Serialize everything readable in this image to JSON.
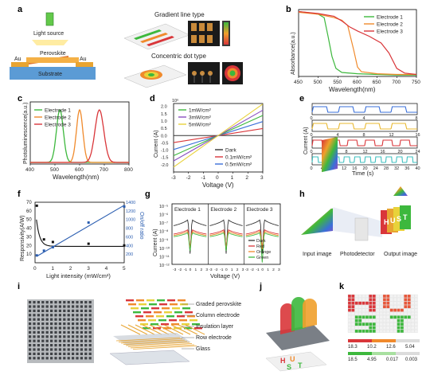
{
  "panel_labels": [
    "a",
    "b",
    "c",
    "d",
    "e",
    "f",
    "g",
    "h",
    "i",
    "j",
    "k"
  ],
  "panel_a": {
    "light_source": "Light source",
    "perovskite": "Perovskite",
    "au_left": "Au",
    "au_right": "Au",
    "substrate": "Substrate",
    "gradient_title": "Gradient line type",
    "concentric_title": "Concentric dot type"
  },
  "panel_h": {
    "input_image": "Input image",
    "photodetector": "Photodetector",
    "output_image": "Output image",
    "letters": [
      "H",
      "U",
      "S",
      "T"
    ]
  },
  "panel_i": {
    "layers": [
      "Graded perovskite",
      "Column electrode",
      "Insulation layer",
      "Row electrode",
      "Glass"
    ]
  },
  "panel_j": {
    "letters": [
      "H",
      "U",
      "S",
      "T"
    ]
  },
  "panel_k": {
    "letters": [
      "H",
      "U",
      "S",
      "T"
    ],
    "legend_top": [
      "18.3",
      "10.2",
      "12.6",
      "5.04"
    ],
    "legend_bottom": [
      "18.5",
      "4.95",
      "0.017",
      "0.003"
    ]
  },
  "chart_data": [
    {
      "id": "b",
      "type": "line",
      "xlabel": "Wavelength(nm)",
      "ylabel": "Absorbance(a.u.)",
      "xlim": [
        450,
        750
      ],
      "xticks": [
        450,
        500,
        550,
        600,
        650,
        700,
        750
      ],
      "series": [
        {
          "name": "Electrode 1",
          "color": "#3db83d",
          "x": [
            450,
            480,
            500,
            515,
            525,
            535,
            545,
            560,
            600,
            650,
            700,
            750
          ],
          "y": [
            0.97,
            0.95,
            0.93,
            0.88,
            0.6,
            0.3,
            0.12,
            0.06,
            0.04,
            0.03,
            0.02,
            0.02
          ]
        },
        {
          "name": "Electrode 2",
          "color": "#f08a2c",
          "x": [
            450,
            500,
            540,
            560,
            575,
            590,
            600,
            610,
            650,
            700,
            750
          ],
          "y": [
            0.96,
            0.93,
            0.88,
            0.84,
            0.76,
            0.4,
            0.14,
            0.07,
            0.04,
            0.03,
            0.03
          ]
        },
        {
          "name": "Electrode 3",
          "color": "#d9363a",
          "x": [
            450,
            500,
            540,
            560,
            580,
            600,
            630,
            660,
            680,
            700,
            720,
            750
          ],
          "y": [
            0.97,
            0.94,
            0.9,
            0.83,
            0.74,
            0.68,
            0.6,
            0.5,
            0.35,
            0.12,
            0.05,
            0.03
          ]
        }
      ]
    },
    {
      "id": "c",
      "type": "line",
      "xlabel": "Wavelength(nm)",
      "ylabel": "Photoluminescence(a.u.)",
      "xlim": [
        400,
        800
      ],
      "xticks": [
        400,
        500,
        600,
        700,
        800
      ],
      "series": [
        {
          "name": "Electrode 1",
          "color": "#3db83d",
          "peak": 520,
          "width": 14
        },
        {
          "name": "Electrode 2",
          "color": "#f08a2c",
          "peak": 600,
          "width": 13
        },
        {
          "name": "Electrode 3",
          "color": "#d9363a",
          "peak": 680,
          "width": 18
        }
      ]
    },
    {
      "id": "d",
      "type": "line",
      "xlabel": "Voltage (V)",
      "ylabel": "Current (A)",
      "yexp": "10⁶",
      "xlim": [
        -3,
        3
      ],
      "ylim": [
        -2.5,
        2.2
      ],
      "xticks": [
        -3,
        -2,
        -1,
        0,
        1,
        2,
        3
      ],
      "yticks": [
        2.0,
        1.5,
        1.0,
        0.5,
        0.0,
        -0.5,
        -1.0,
        -1.5,
        -2.0
      ],
      "legend_top": [
        "1mW/cm²",
        "3mW/cm²",
        "5mW/cm²"
      ],
      "legend_bottom": [
        "Dark",
        "0.1mW/cm²",
        "0.5mW/cm²"
      ],
      "series": [
        {
          "name": "Dark",
          "color": "#333333",
          "slope": 0.0
        },
        {
          "name": "0.1mW/cm²",
          "color": "#d9363a",
          "slope": 0.16
        },
        {
          "name": "0.5mW/cm²",
          "color": "#3a6fd9",
          "slope": 0.32
        },
        {
          "name": "1mW/cm²",
          "color": "#3db83d",
          "slope": 0.46
        },
        {
          "name": "3mW/cm²",
          "color": "#8a4fc0",
          "slope": 0.58
        },
        {
          "name": "5mW/cm²",
          "color": "#e8d23a",
          "slope": 0.72
        }
      ]
    },
    {
      "id": "e",
      "type": "line",
      "xlabel": "Time (s)",
      "ylabel": "Current (A)",
      "rows": [
        {
          "color": "#3a6fd9",
          "ticks": [
            "0",
            "4",
            "8"
          ],
          "tmax": 8,
          "period": 2
        },
        {
          "color": "#e8b830",
          "ticks": [
            "0",
            "4",
            "8",
            "12",
            "16"
          ],
          "tmax": 16,
          "period": 4
        },
        {
          "color": "#d9363a",
          "ticks": [
            "0",
            "4",
            "8",
            "12",
            "16",
            "20",
            "24"
          ],
          "tmax": 24,
          "period": 4
        },
        {
          "color": "#3fc0c0",
          "ticks": [
            "0",
            "4",
            "8",
            "12",
            "16",
            "20",
            "24",
            "28",
            "32",
            "36",
            "40"
          ],
          "tmax": 40,
          "period": 4
        }
      ]
    },
    {
      "id": "f",
      "type": "scatter",
      "xlabel": "Light intensity (mW/cm²)",
      "ylabel": "Responsivity(A/W)",
      "y2label": "On/off ratio",
      "xlim": [
        0,
        5
      ],
      "ylim": [
        0,
        70
      ],
      "y2lim": [
        0,
        1400
      ],
      "xticks": [
        0,
        1,
        2,
        3,
        4,
        5
      ],
      "yticks": [
        10,
        20,
        30,
        40,
        50,
        60,
        70
      ],
      "y2ticks": [
        200,
        400,
        600,
        800,
        1000,
        1200,
        1400
      ],
      "responsivity": {
        "x": [
          0.1,
          0.5,
          1,
          3,
          5
        ],
        "y": [
          66,
          27,
          24,
          22,
          20
        ]
      },
      "onoff": {
        "x": [
          0.1,
          0.5,
          1,
          3,
          5
        ],
        "y": [
          170,
          280,
          360,
          930,
          1300
        ]
      }
    },
    {
      "id": "g",
      "type": "line",
      "xlabel": "Voltage (V)",
      "ylabel": "Current (A)",
      "yticks": [
        "10⁻⁵",
        "10⁻⁶",
        "10⁻⁷",
        "10⁻⁸",
        "10⁻⁹",
        "10⁻¹⁰",
        "10⁻¹¹",
        "10⁻¹²"
      ],
      "subplots": [
        "Electrode 1",
        "Electrode 2",
        "Electrode 3"
      ],
      "xticks": [
        "-3",
        "-2",
        "-1",
        "0",
        "1",
        "2",
        "3"
      ],
      "legend": [
        {
          "name": "Dark",
          "color": "#333333"
        },
        {
          "name": "Red",
          "color": "#d9363a"
        },
        {
          "name": "Orange",
          "color": "#f08a2c"
        },
        {
          "name": "Green",
          "color": "#3db83d"
        }
      ]
    }
  ]
}
